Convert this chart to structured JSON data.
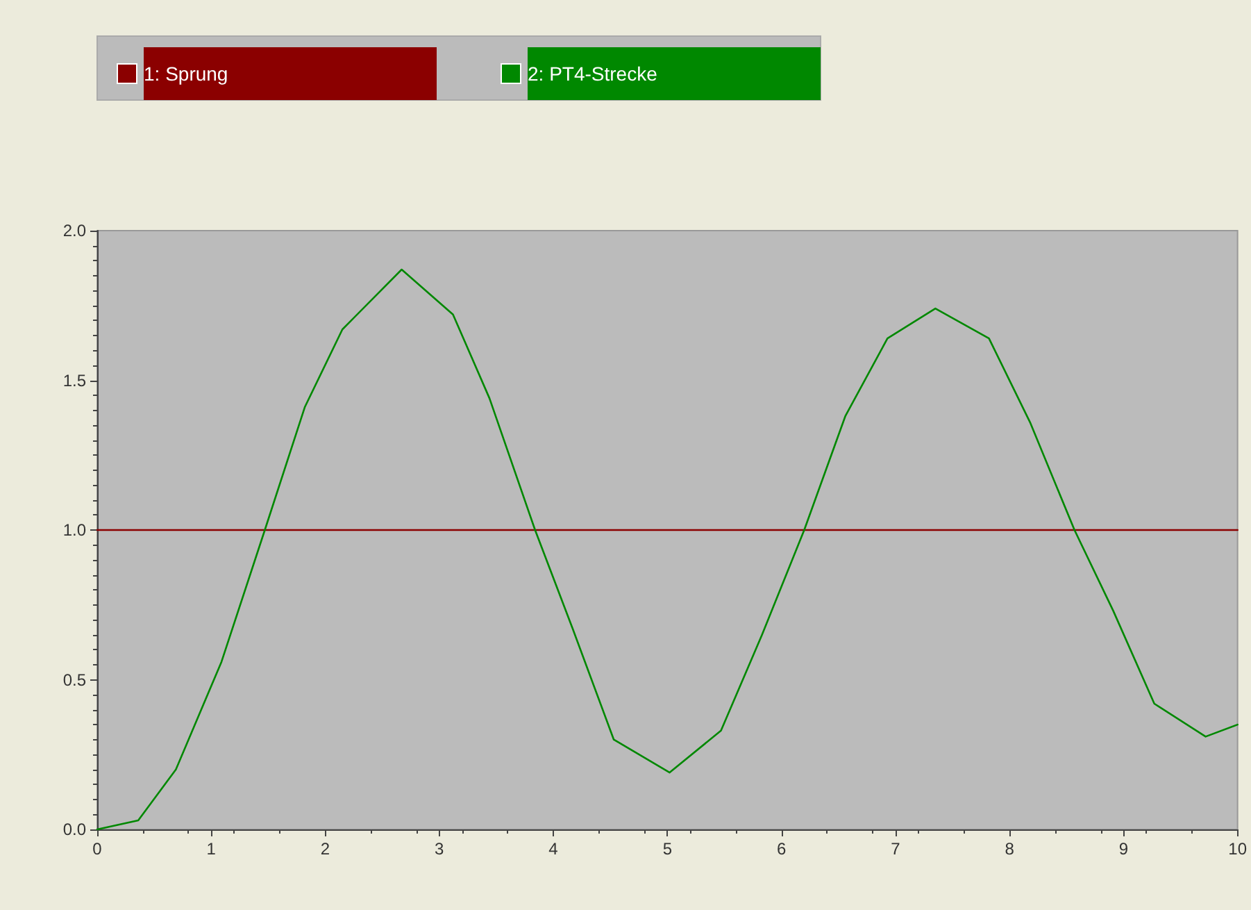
{
  "chart_data": {
    "type": "line",
    "series": [
      {
        "name": "1: Sprung",
        "color": "#8b0000",
        "x": [
          0,
          10
        ],
        "values": [
          1,
          1
        ]
      },
      {
        "name": "2: PT4-Strecke",
        "color": "#008800",
        "x": [
          0,
          0.36,
          0.69,
          1.09,
          1.47,
          1.82,
          2.15,
          2.67,
          3.12,
          3.44,
          3.84,
          4.17,
          4.53,
          5.02,
          5.47,
          5.83,
          6.2,
          6.56,
          6.93,
          7.35,
          7.82,
          8.18,
          8.57,
          8.91,
          9.27,
          9.72,
          10
        ],
        "values": [
          0,
          0.03,
          0.2,
          0.56,
          1.0,
          1.41,
          1.67,
          1.87,
          1.72,
          1.44,
          1.0,
          0.67,
          0.3,
          0.19,
          0.33,
          0.65,
          1.0,
          1.38,
          1.64,
          1.74,
          1.64,
          1.36,
          1.0,
          0.73,
          0.42,
          0.31,
          0.35
        ]
      }
    ],
    "xlim": [
      0,
      10
    ],
    "xticks": [
      0,
      1,
      2,
      3,
      4,
      5,
      6,
      7,
      8,
      9,
      10
    ],
    "ylim": [
      0,
      2
    ],
    "yticks": [
      {
        "value": 0,
        "label": "0.0"
      },
      {
        "value": 0.5,
        "label": "0.5"
      },
      {
        "value": 1,
        "label": "1.0"
      },
      {
        "value": 1.5,
        "label": "1.5"
      },
      {
        "value": 2,
        "label": "2.0"
      }
    ],
    "grid": false,
    "legend": "top",
    "marker": "none",
    "line_style": "solid"
  }
}
